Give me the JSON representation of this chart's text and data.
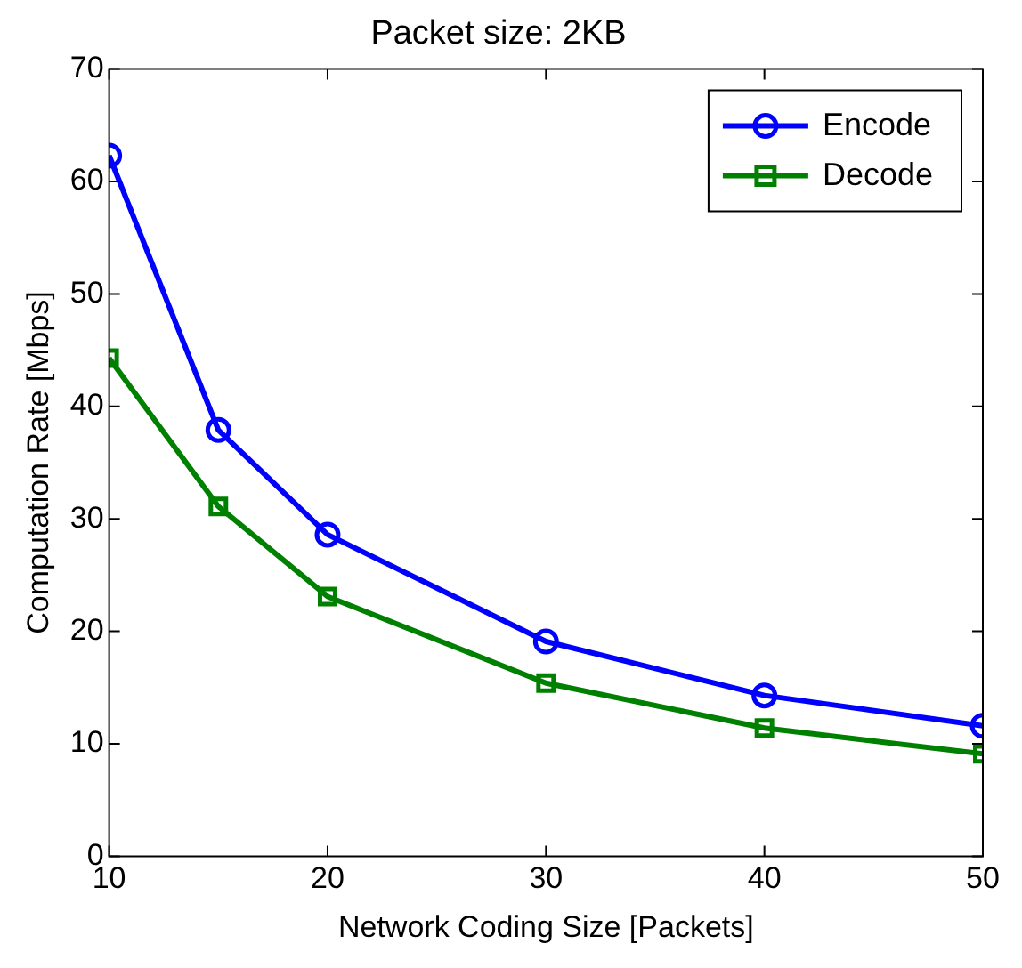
{
  "chart_data": {
    "type": "line",
    "title": "Packet size: 2KB",
    "xlabel": "Network Coding Size [Packets]",
    "ylabel": "Computation Rate [Mbps]",
    "x": [
      10,
      15,
      20,
      30,
      40,
      50
    ],
    "series": [
      {
        "name": "Encode",
        "color": "#0000ff",
        "marker": "circle",
        "values": [
          62.3,
          37.9,
          28.6,
          19.1,
          14.3,
          11.6
        ]
      },
      {
        "name": "Decode",
        "color": "#008000",
        "marker": "square",
        "values": [
          44.3,
          31.1,
          23.1,
          15.4,
          11.4,
          9.1
        ]
      }
    ],
    "xlim": [
      10,
      50
    ],
    "xticks": [
      10,
      20,
      30,
      40,
      50
    ],
    "ylim": [
      0,
      70
    ],
    "yticks": [
      0,
      10,
      20,
      30,
      40,
      50,
      60,
      70
    ],
    "grid": false,
    "legend": "top right",
    "line_style": "solid"
  }
}
